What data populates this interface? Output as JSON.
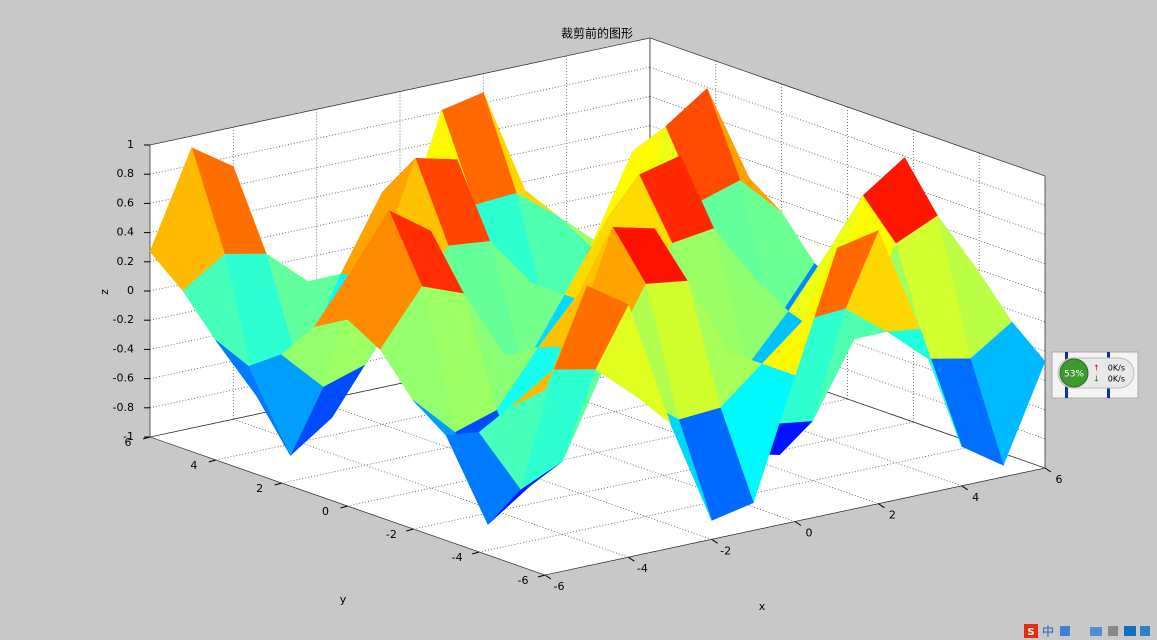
{
  "chart_data": {
    "type": "surface",
    "title": "裁剪前的图形",
    "xlabel": "x",
    "ylabel": "y",
    "zlabel": "z",
    "x": [
      -6,
      -5,
      -4,
      -3,
      -2,
      -1,
      0,
      1,
      2,
      3,
      4,
      5,
      6
    ],
    "y": [
      -6,
      -5,
      -4,
      -3,
      -2,
      -1,
      0,
      1,
      2,
      3,
      4,
      5,
      6
    ],
    "z": [
      [
        0.27,
        0.92,
        0.73,
        -0.14,
        -0.87,
        -0.81,
        0,
        0.81,
        0.87,
        0.14,
        -0.73,
        -0.92,
        -0.27
      ],
      [
        0.08,
        0.27,
        0.21,
        -0.04,
        -0.26,
        -0.24,
        0,
        0.24,
        0.26,
        0.04,
        -0.21,
        -0.27,
        -0.08
      ],
      [
        -0.18,
        -0.63,
        -0.5,
        0.09,
        0.59,
        0.55,
        0,
        -0.55,
        -0.59,
        -0.09,
        0.5,
        0.63,
        0.18
      ],
      [
        -0.28,
        -0.95,
        -0.75,
        0.14,
        0.9,
        0.83,
        0,
        -0.83,
        -0.9,
        -0.14,
        0.75,
        0.95,
        0.28
      ],
      [
        -0.12,
        -0.4,
        -0.31,
        0.06,
        0.38,
        0.35,
        0,
        -0.35,
        -0.38,
        -0.06,
        0.31,
        0.4,
        0.12
      ],
      [
        0.15,
        0.52,
        0.41,
        -0.08,
        -0.49,
        -0.45,
        0,
        0.45,
        0.49,
        0.08,
        -0.41,
        -0.52,
        -0.15
      ],
      [
        0.28,
        0.96,
        0.76,
        -0.14,
        -0.91,
        -0.84,
        0,
        0.84,
        0.91,
        0.14,
        -0.76,
        -0.96,
        -0.28
      ],
      [
        0.15,
        0.52,
        0.41,
        -0.08,
        -0.49,
        -0.45,
        0,
        0.45,
        0.49,
        0.08,
        -0.41,
        -0.52,
        -0.15
      ],
      [
        -0.12,
        -0.4,
        -0.31,
        0.06,
        0.38,
        0.35,
        0,
        -0.35,
        -0.38,
        -0.06,
        0.31,
        0.4,
        0.12
      ],
      [
        -0.28,
        -0.95,
        -0.75,
        0.14,
        0.9,
        0.83,
        0,
        -0.83,
        -0.9,
        -0.14,
        0.75,
        0.95,
        0.28
      ],
      [
        -0.18,
        -0.63,
        -0.5,
        0.09,
        0.59,
        0.55,
        0,
        -0.55,
        -0.59,
        -0.09,
        0.5,
        0.63,
        0.18
      ],
      [
        0.08,
        0.27,
        0.21,
        -0.04,
        -0.26,
        -0.24,
        0,
        0.24,
        0.26,
        0.04,
        -0.21,
        -0.27,
        -0.08
      ],
      [
        0.27,
        0.92,
        0.73,
        -0.14,
        -0.87,
        -0.81,
        0,
        0.81,
        0.87,
        0.14,
        -0.73,
        -0.92,
        -0.27
      ]
    ],
    "colormap": "jet",
    "xlim": [
      -6,
      6
    ],
    "ylim": [
      -6,
      6
    ],
    "zlim": [
      -1,
      1
    ],
    "xticks": [
      -6,
      -4,
      -2,
      0,
      2,
      4,
      6
    ],
    "yticks": [
      -6,
      -4,
      -2,
      0,
      2,
      4,
      6
    ],
    "zticks": [
      -1,
      -0.8,
      -0.6,
      -0.4,
      -0.2,
      0,
      0.2,
      0.4,
      0.6,
      0.8,
      1
    ],
    "grid": true
  },
  "widget": {
    "percent": "53%",
    "up": "0K/s",
    "down": "0K/s"
  },
  "tray": [
    "S",
    "中"
  ]
}
